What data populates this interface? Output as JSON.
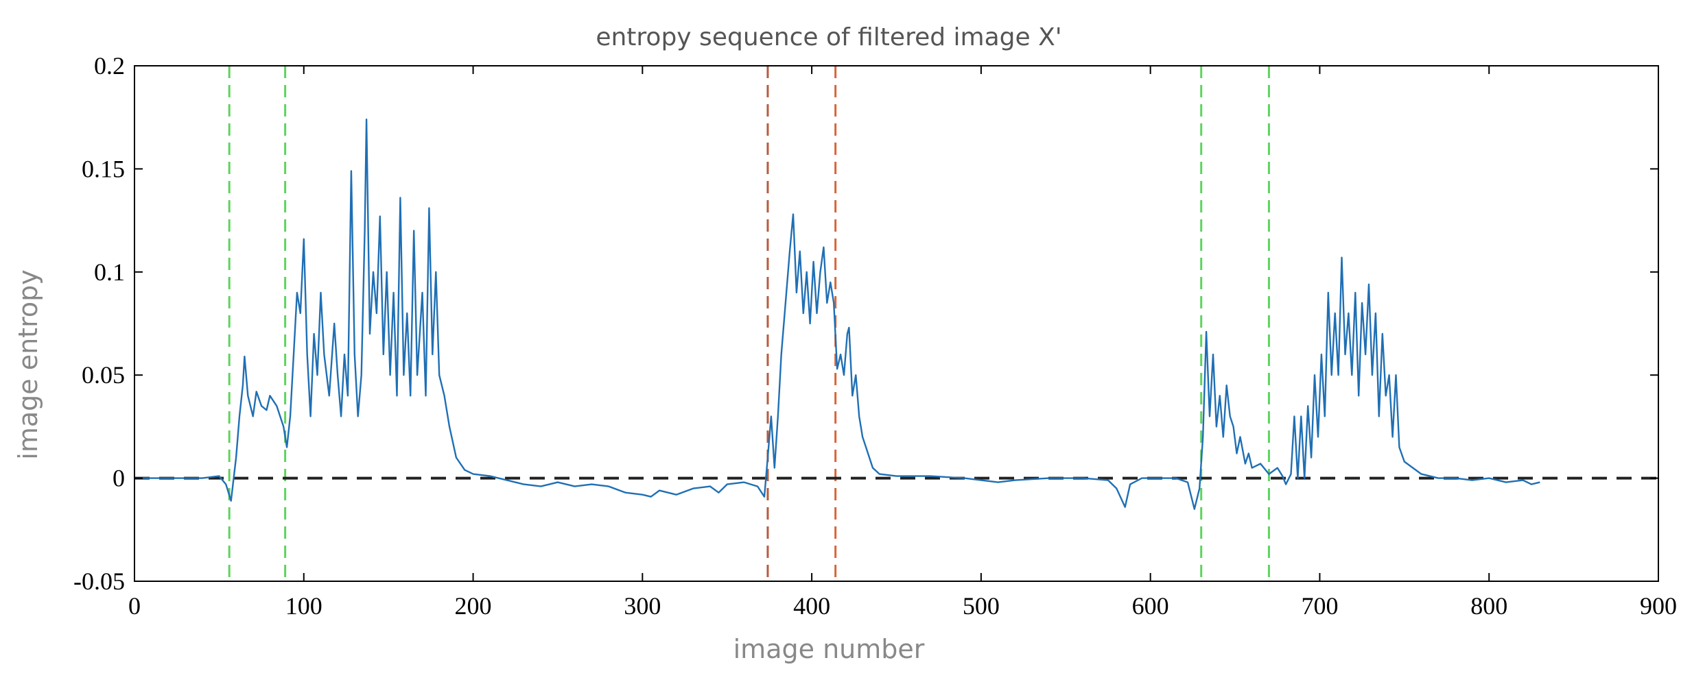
{
  "chart_data": {
    "type": "line",
    "title": "entropy sequence of filtered image X'",
    "xlabel": "image number",
    "ylabel": "image entropy",
    "xlim": [
      0,
      900
    ],
    "ylim": [
      -0.05,
      0.2
    ],
    "xticks": [
      0,
      100,
      200,
      300,
      400,
      500,
      600,
      700,
      800,
      900
    ],
    "xtick_labels": [
      "0",
      "100",
      "200",
      "300",
      "400",
      "500",
      "600",
      "700",
      "800",
      "900"
    ],
    "yticks": [
      -0.05,
      0,
      0.05,
      0.1,
      0.15,
      0.2
    ],
    "ytick_labels": [
      "-0.05",
      "0",
      "0.05",
      "0.1",
      "0.15",
      "0.2"
    ],
    "grid": false,
    "series": [
      {
        "color": "#1f6fb4",
        "x_range": [
          0,
          830
        ],
        "points": [
          [
            0,
            0
          ],
          [
            10,
            0
          ],
          [
            20,
            0
          ],
          [
            30,
            0
          ],
          [
            40,
            0
          ],
          [
            50,
            0.001
          ],
          [
            54,
            -0.003
          ],
          [
            57,
            -0.011
          ],
          [
            60,
            0.01
          ],
          [
            62,
            0.03
          ],
          [
            64,
            0.045
          ],
          [
            65,
            0.059
          ],
          [
            67,
            0.04
          ],
          [
            70,
            0.03
          ],
          [
            72,
            0.042
          ],
          [
            75,
            0.035
          ],
          [
            78,
            0.033
          ],
          [
            80,
            0.04
          ],
          [
            84,
            0.035
          ],
          [
            88,
            0.025
          ],
          [
            90,
            0.015
          ],
          [
            92,
            0.03
          ],
          [
            94,
            0.06
          ],
          [
            96,
            0.09
          ],
          [
            98,
            0.08
          ],
          [
            100,
            0.116
          ],
          [
            102,
            0.06
          ],
          [
            104,
            0.03
          ],
          [
            106,
            0.07
          ],
          [
            108,
            0.05
          ],
          [
            110,
            0.09
          ],
          [
            112,
            0.06
          ],
          [
            115,
            0.04
          ],
          [
            118,
            0.075
          ],
          [
            120,
            0.05
          ],
          [
            122,
            0.03
          ],
          [
            124,
            0.06
          ],
          [
            126,
            0.04
          ],
          [
            128,
            0.149
          ],
          [
            130,
            0.06
          ],
          [
            132,
            0.03
          ],
          [
            134,
            0.05
          ],
          [
            136,
            0.12
          ],
          [
            137,
            0.174
          ],
          [
            139,
            0.07
          ],
          [
            141,
            0.1
          ],
          [
            143,
            0.08
          ],
          [
            145,
            0.127
          ],
          [
            147,
            0.06
          ],
          [
            149,
            0.1
          ],
          [
            151,
            0.05
          ],
          [
            153,
            0.09
          ],
          [
            155,
            0.04
          ],
          [
            157,
            0.136
          ],
          [
            159,
            0.05
          ],
          [
            161,
            0.08
          ],
          [
            163,
            0.04
          ],
          [
            165,
            0.12
          ],
          [
            167,
            0.05
          ],
          [
            170,
            0.09
          ],
          [
            172,
            0.04
          ],
          [
            174,
            0.131
          ],
          [
            176,
            0.06
          ],
          [
            178,
            0.1
          ],
          [
            180,
            0.05
          ],
          [
            183,
            0.04
          ],
          [
            186,
            0.025
          ],
          [
            190,
            0.01
          ],
          [
            195,
            0.004
          ],
          [
            200,
            0.002
          ],
          [
            210,
            0.001
          ],
          [
            220,
            -0.001
          ],
          [
            230,
            -0.003
          ],
          [
            240,
            -0.004
          ],
          [
            250,
            -0.002
          ],
          [
            260,
            -0.004
          ],
          [
            270,
            -0.003
          ],
          [
            280,
            -0.004
          ],
          [
            290,
            -0.007
          ],
          [
            300,
            -0.008
          ],
          [
            305,
            -0.009
          ],
          [
            310,
            -0.006
          ],
          [
            320,
            -0.008
          ],
          [
            330,
            -0.005
          ],
          [
            340,
            -0.004
          ],
          [
            345,
            -0.007
          ],
          [
            350,
            -0.003
          ],
          [
            360,
            -0.002
          ],
          [
            368,
            -0.004
          ],
          [
            372,
            -0.009
          ],
          [
            374,
            0.01
          ],
          [
            376,
            0.03
          ],
          [
            378,
            0.005
          ],
          [
            380,
            0.03
          ],
          [
            382,
            0.06
          ],
          [
            385,
            0.09
          ],
          [
            387,
            0.11
          ],
          [
            389,
            0.128
          ],
          [
            391,
            0.09
          ],
          [
            393,
            0.11
          ],
          [
            395,
            0.08
          ],
          [
            397,
            0.1
          ],
          [
            399,
            0.075
          ],
          [
            401,
            0.105
          ],
          [
            403,
            0.08
          ],
          [
            405,
            0.1
          ],
          [
            407,
            0.112
          ],
          [
            409,
            0.085
          ],
          [
            411,
            0.095
          ],
          [
            413,
            0.085
          ],
          [
            415,
            0.053
          ],
          [
            417,
            0.06
          ],
          [
            419,
            0.05
          ],
          [
            421,
            0.07
          ],
          [
            422,
            0.073
          ],
          [
            424,
            0.04
          ],
          [
            426,
            0.05
          ],
          [
            428,
            0.03
          ],
          [
            430,
            0.02
          ],
          [
            432,
            0.015
          ],
          [
            436,
            0.005
          ],
          [
            440,
            0.002
          ],
          [
            450,
            0.001
          ],
          [
            470,
            0.001
          ],
          [
            490,
            0.0
          ],
          [
            500,
            -0.001
          ],
          [
            510,
            -0.002
          ],
          [
            520,
            -0.001
          ],
          [
            540,
            0.0
          ],
          [
            560,
            0.0
          ],
          [
            575,
            -0.001
          ],
          [
            580,
            -0.005
          ],
          [
            585,
            -0.014
          ],
          [
            588,
            -0.003
          ],
          [
            595,
            0.0
          ],
          [
            605,
            0.0
          ],
          [
            615,
            0.0
          ],
          [
            622,
            -0.002
          ],
          [
            626,
            -0.015
          ],
          [
            629,
            -0.005
          ],
          [
            631,
            0.02
          ],
          [
            633,
            0.071
          ],
          [
            635,
            0.03
          ],
          [
            637,
            0.06
          ],
          [
            639,
            0.025
          ],
          [
            641,
            0.04
          ],
          [
            643,
            0.02
          ],
          [
            645,
            0.045
          ],
          [
            647,
            0.03
          ],
          [
            649,
            0.025
          ],
          [
            651,
            0.012
          ],
          [
            653,
            0.02
          ],
          [
            656,
            0.007
          ],
          [
            658,
            0.012
          ],
          [
            660,
            0.005
          ],
          [
            665,
            0.007
          ],
          [
            670,
            0.002
          ],
          [
            675,
            0.005
          ],
          [
            678,
            0.001
          ],
          [
            680,
            -0.003
          ],
          [
            683,
            0.002
          ],
          [
            685,
            0.03
          ],
          [
            687,
            0.0
          ],
          [
            689,
            0.03
          ],
          [
            691,
            0.0
          ],
          [
            693,
            0.035
          ],
          [
            695,
            0.01
          ],
          [
            697,
            0.05
          ],
          [
            699,
            0.02
          ],
          [
            701,
            0.06
          ],
          [
            703,
            0.03
          ],
          [
            705,
            0.09
          ],
          [
            707,
            0.05
          ],
          [
            709,
            0.08
          ],
          [
            711,
            0.05
          ],
          [
            713,
            0.107
          ],
          [
            715,
            0.06
          ],
          [
            717,
            0.08
          ],
          [
            719,
            0.05
          ],
          [
            721,
            0.09
          ],
          [
            723,
            0.04
          ],
          [
            725,
            0.085
          ],
          [
            727,
            0.06
          ],
          [
            729,
            0.094
          ],
          [
            731,
            0.05
          ],
          [
            733,
            0.08
          ],
          [
            735,
            0.03
          ],
          [
            737,
            0.07
          ],
          [
            739,
            0.04
          ],
          [
            741,
            0.05
          ],
          [
            743,
            0.02
          ],
          [
            745,
            0.05
          ],
          [
            747,
            0.015
          ],
          [
            750,
            0.008
          ],
          [
            755,
            0.005
          ],
          [
            760,
            0.002
          ],
          [
            770,
            0.0
          ],
          [
            780,
            0.0
          ],
          [
            790,
            -0.001
          ],
          [
            800,
            0.0
          ],
          [
            810,
            -0.002
          ],
          [
            820,
            -0.001
          ],
          [
            825,
            -0.003
          ],
          [
            830,
            -0.002
          ]
        ]
      }
    ],
    "reference_lines": {
      "horizontal": [
        {
          "y": 0,
          "style": "dashed",
          "color": "#222222"
        }
      ],
      "vertical": [
        {
          "x": 56,
          "style": "dashed",
          "color": "#5ed35e"
        },
        {
          "x": 89,
          "style": "dashed",
          "color": "#5ed35e"
        },
        {
          "x": 374,
          "style": "dashed",
          "color": "#b85a3c"
        },
        {
          "x": 414,
          "style": "dashed",
          "color": "#d9643a"
        },
        {
          "x": 630,
          "style": "dashed",
          "color": "#5ed35e"
        },
        {
          "x": 670,
          "style": "dashed",
          "color": "#5ed35e"
        }
      ]
    }
  }
}
